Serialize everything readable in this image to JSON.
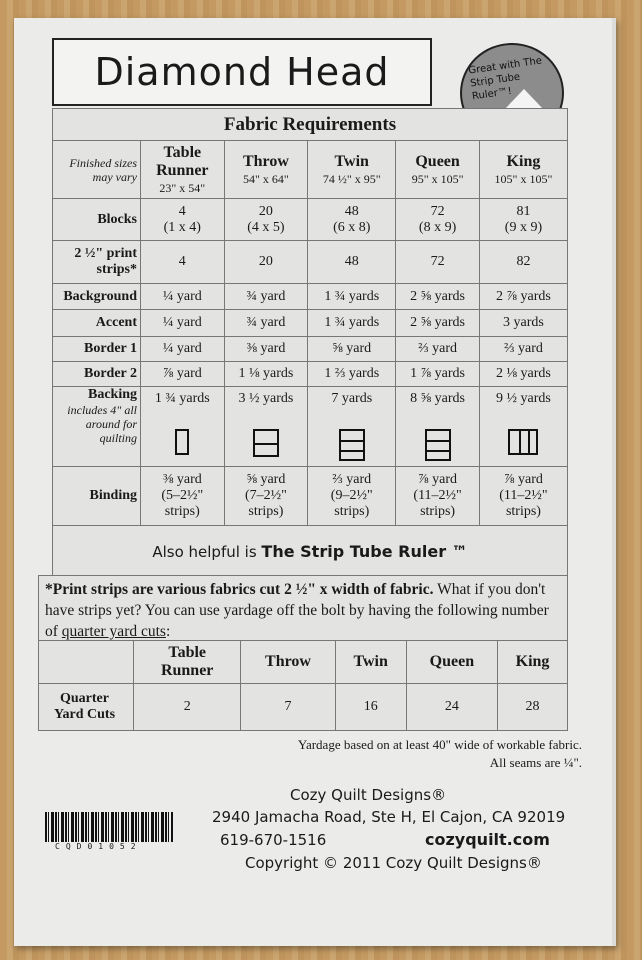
{
  "title": "Diamond Head",
  "badge": "Great with The Strip Tube Ruler™!",
  "section_title": "Fabric Requirements",
  "size_note": [
    "Finished sizes",
    "may vary"
  ],
  "columns": [
    {
      "name": [
        "Table",
        "Runner"
      ],
      "size": "23\" x 54\""
    },
    {
      "name": [
        "",
        "Throw"
      ],
      "size": "54\" x 64\""
    },
    {
      "name": [
        "",
        "Twin"
      ],
      "size": "74 ½\" x 95\""
    },
    {
      "name": [
        "",
        "Queen"
      ],
      "size": "95\" x 105\""
    },
    {
      "name": [
        "",
        "King"
      ],
      "size": "105\" x 105\""
    }
  ],
  "rows": [
    {
      "label": "Blocks",
      "values": [
        "4\n(1 x 4)",
        "20\n(4 x 5)",
        "48\n(6 x 8)",
        "72\n(8 x 9)",
        "81\n(9 x 9)"
      ]
    },
    {
      "label": "2 ½\" print strips*",
      "values": [
        "4",
        "20",
        "48",
        "72",
        "82"
      ]
    },
    {
      "label": "Background",
      "values": [
        "¼ yard",
        "¾ yard",
        "1 ¾ yards",
        "2 ⅝ yards",
        "2 ⅞ yards"
      ]
    },
    {
      "label": "Accent",
      "values": [
        "¼ yard",
        "¾ yard",
        "1 ¾ yards",
        "2 ⅝ yards",
        "3 yards"
      ]
    },
    {
      "label": "Border 1",
      "values": [
        "¼ yard",
        "⅜ yard",
        "⅝ yard",
        "⅔ yard",
        "⅔ yard"
      ]
    },
    {
      "label": "Border 2",
      "values": [
        "⅞ yard",
        "1 ⅛ yards",
        "1 ⅔ yards",
        "1 ⅞ yards",
        "2 ⅛ yards"
      ]
    }
  ],
  "backing": {
    "label": "Backing",
    "note": "includes 4\" all around for quilting",
    "values": [
      "1 ¾ yards",
      "3 ½ yards",
      "7 yards",
      "8 ⅝ yards",
      "9 ½ yards"
    ],
    "panel_layouts": [
      "1 panel",
      "2 horizontal panels",
      "3 horizontal panels",
      "3 horizontal panels",
      "3 vertical panels"
    ]
  },
  "binding": {
    "label": "Binding",
    "values": [
      "⅜ yard\n(5–2½\"\nstrips)",
      "⅝ yard\n(7–2½\"\nstrips)",
      "⅔ yard\n(9–2½\"\nstrips)",
      "⅞ yard\n(11–2½\"\nstrips)",
      "⅞ yard\n(11–2½\"\nstrips)"
    ]
  },
  "also_helpful": {
    "prefix": "Also helpful is ",
    "product": "The Strip Tube Ruler ™"
  },
  "footnote": {
    "bold": "*Print strips are various fabrics cut 2 ½\" x width of fabric.",
    "text": " What if you don't have strips yet? You can use yardage off the bolt by having the following number of ",
    "link": "quarter yard cuts",
    "end": ":"
  },
  "quarter_table": {
    "headers": [
      [
        "Table",
        "Runner"
      ],
      [
        "",
        "Throw"
      ],
      [
        "",
        "Twin"
      ],
      [
        "",
        "Queen"
      ],
      [
        "",
        "King"
      ]
    ],
    "row_label": [
      "Quarter",
      "Yard Cuts"
    ],
    "values": [
      "2",
      "7",
      "16",
      "24",
      "28"
    ]
  },
  "notes": [
    "Yardage based on at least 40\" wide of workable fabric.",
    "All seams are ¼\"."
  ],
  "company": {
    "name": "Cozy Quilt Designs®",
    "address": "2940 Jamacha Road, Ste H, El Cajon, CA 92019",
    "phone": "619-670-1516",
    "website": "cozyquilt.com",
    "copyright": "Copyright © 2011 Cozy Quilt Designs®"
  },
  "barcode": "CQD01052"
}
